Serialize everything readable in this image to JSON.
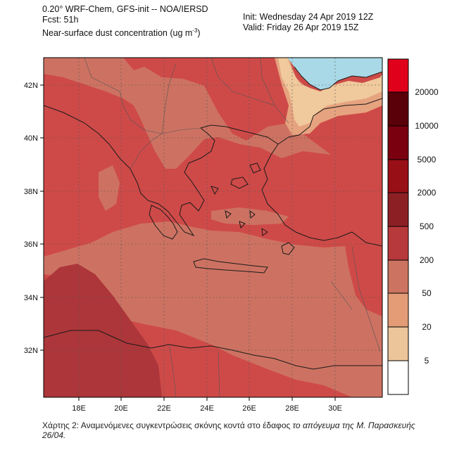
{
  "header": {
    "model_line": "0.20° WRF-Chem, GFS-init -- NOA/IERSD",
    "forecast_line": "Fcst: 51h",
    "field_line": "Near-surface dust concentration (ug m",
    "field_unit_exp": "-3",
    "field_line_end": ")",
    "init_line": "Init: Wednesday 24 Apr 2019  12Z",
    "valid_line": "Valid: Friday 26 Apr 2019  15Z"
  },
  "axes": {
    "lat_labels": [
      "42N",
      "40N",
      "38N",
      "36N",
      "34N",
      "32N"
    ],
    "lon_labels": [
      "18E",
      "20E",
      "22E",
      "24E",
      "26E",
      "28E",
      "30E"
    ]
  },
  "colorbar": {
    "labels": [
      "20000",
      "10000",
      "5000",
      "2000",
      "500",
      "200",
      "50",
      "20",
      "5"
    ],
    "colors": [
      "#e0001c",
      "#5a0008",
      "#7a0010",
      "#990f16",
      "#8c1f24",
      "#b8393b",
      "#d24a48",
      "#cc7461",
      "#e39c75",
      "#edc59a",
      "#ffffff"
    ]
  },
  "map_colors": {
    "level_2000": "#ac3639",
    "level_500": "#ce4a48",
    "level_200": "#cd7262",
    "level_50": "#e6a37f",
    "level_20": "#f0c99c",
    "no_data": "#a9d9e6",
    "coast": "#1a1a1a"
  },
  "caption": {
    "normal": "Χάρτης 2: Αναμενόμενες συγκεντρώσεις σκόνης κοντά στο έδαφος",
    "italic": " το απόγευμα της Μ. Παρασκευής 26/04."
  }
}
